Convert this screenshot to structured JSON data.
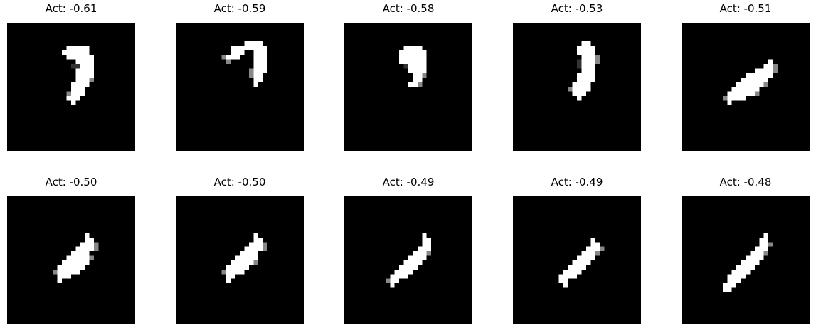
{
  "panels": [
    {
      "title": "Act: -0.61",
      "image": "digit-sample-1"
    },
    {
      "title": "Act: -0.59",
      "image": "digit-sample-2"
    },
    {
      "title": "Act: -0.58",
      "image": "digit-sample-3"
    },
    {
      "title": "Act: -0.53",
      "image": "digit-sample-4"
    },
    {
      "title": "Act: -0.51",
      "image": "digit-sample-5"
    },
    {
      "title": "Act: -0.50",
      "image": "digit-sample-6"
    },
    {
      "title": "Act: -0.50",
      "image": "digit-sample-7"
    },
    {
      "title": "Act: -0.49",
      "image": "digit-sample-8"
    },
    {
      "title": "Act: -0.49",
      "image": "digit-sample-9"
    },
    {
      "title": "Act: -0.48",
      "image": "digit-sample-10"
    }
  ],
  "colors": {
    "background": "#000000",
    "stroke": "#ffffff",
    "mid": "#7a7a7a",
    "dark": "#2e2e2e"
  }
}
